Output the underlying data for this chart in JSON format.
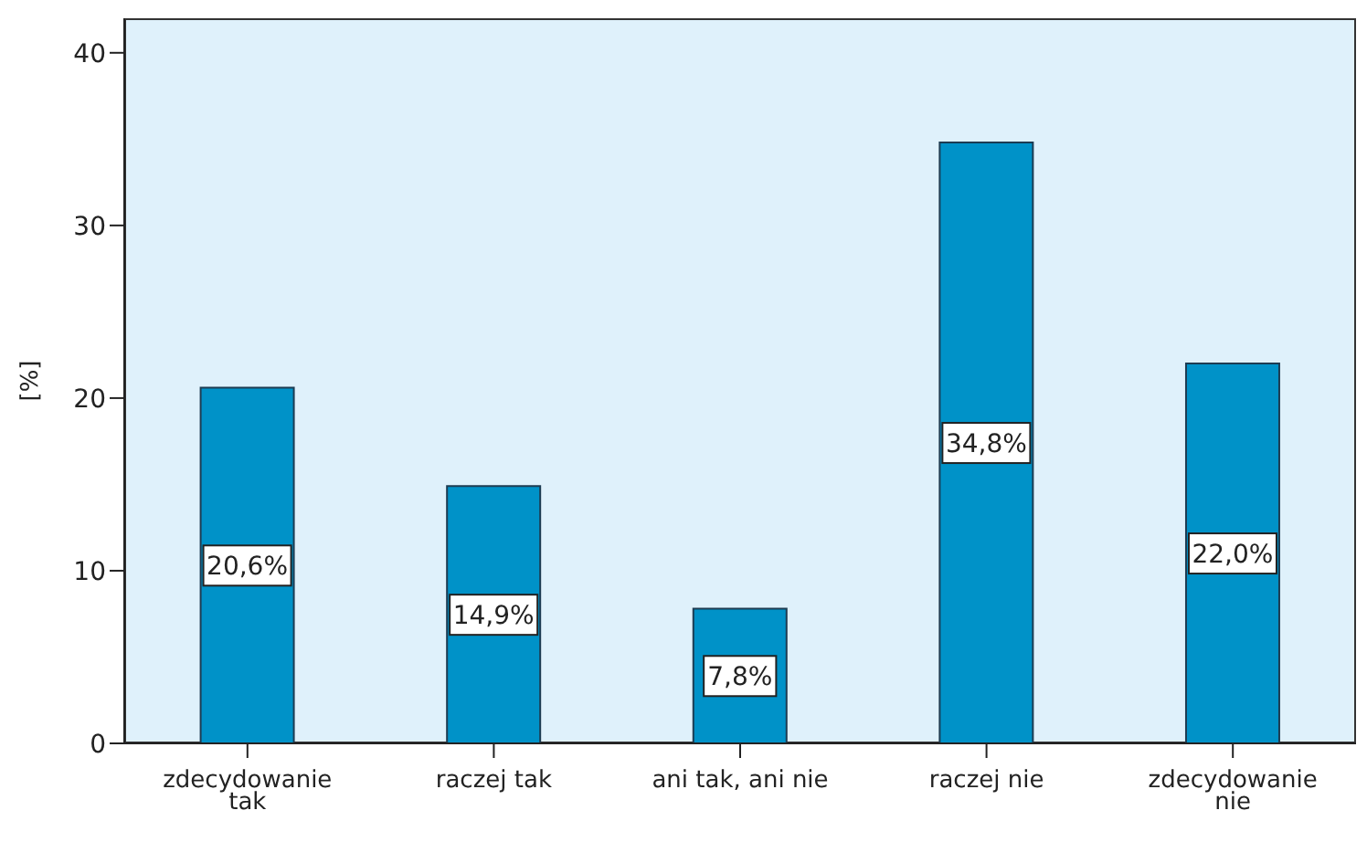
{
  "chart_data": {
    "type": "bar",
    "ylabel": "[%]",
    "categories": [
      "zdecydowanie tak",
      "raczej tak",
      "ani tak, ani nie",
      "raczej nie",
      "zdecydowanie nie"
    ],
    "values": [
      20.6,
      14.9,
      7.8,
      34.8,
      22.0
    ],
    "value_labels": [
      "20,6%",
      "14,9%",
      "7,8%",
      "34,8%",
      "22,0%"
    ],
    "color": "#0092c8",
    "ylim": [
      0,
      42
    ],
    "yticks": [
      0,
      10,
      20,
      30,
      40
    ],
    "grid": false,
    "legend": false
  }
}
